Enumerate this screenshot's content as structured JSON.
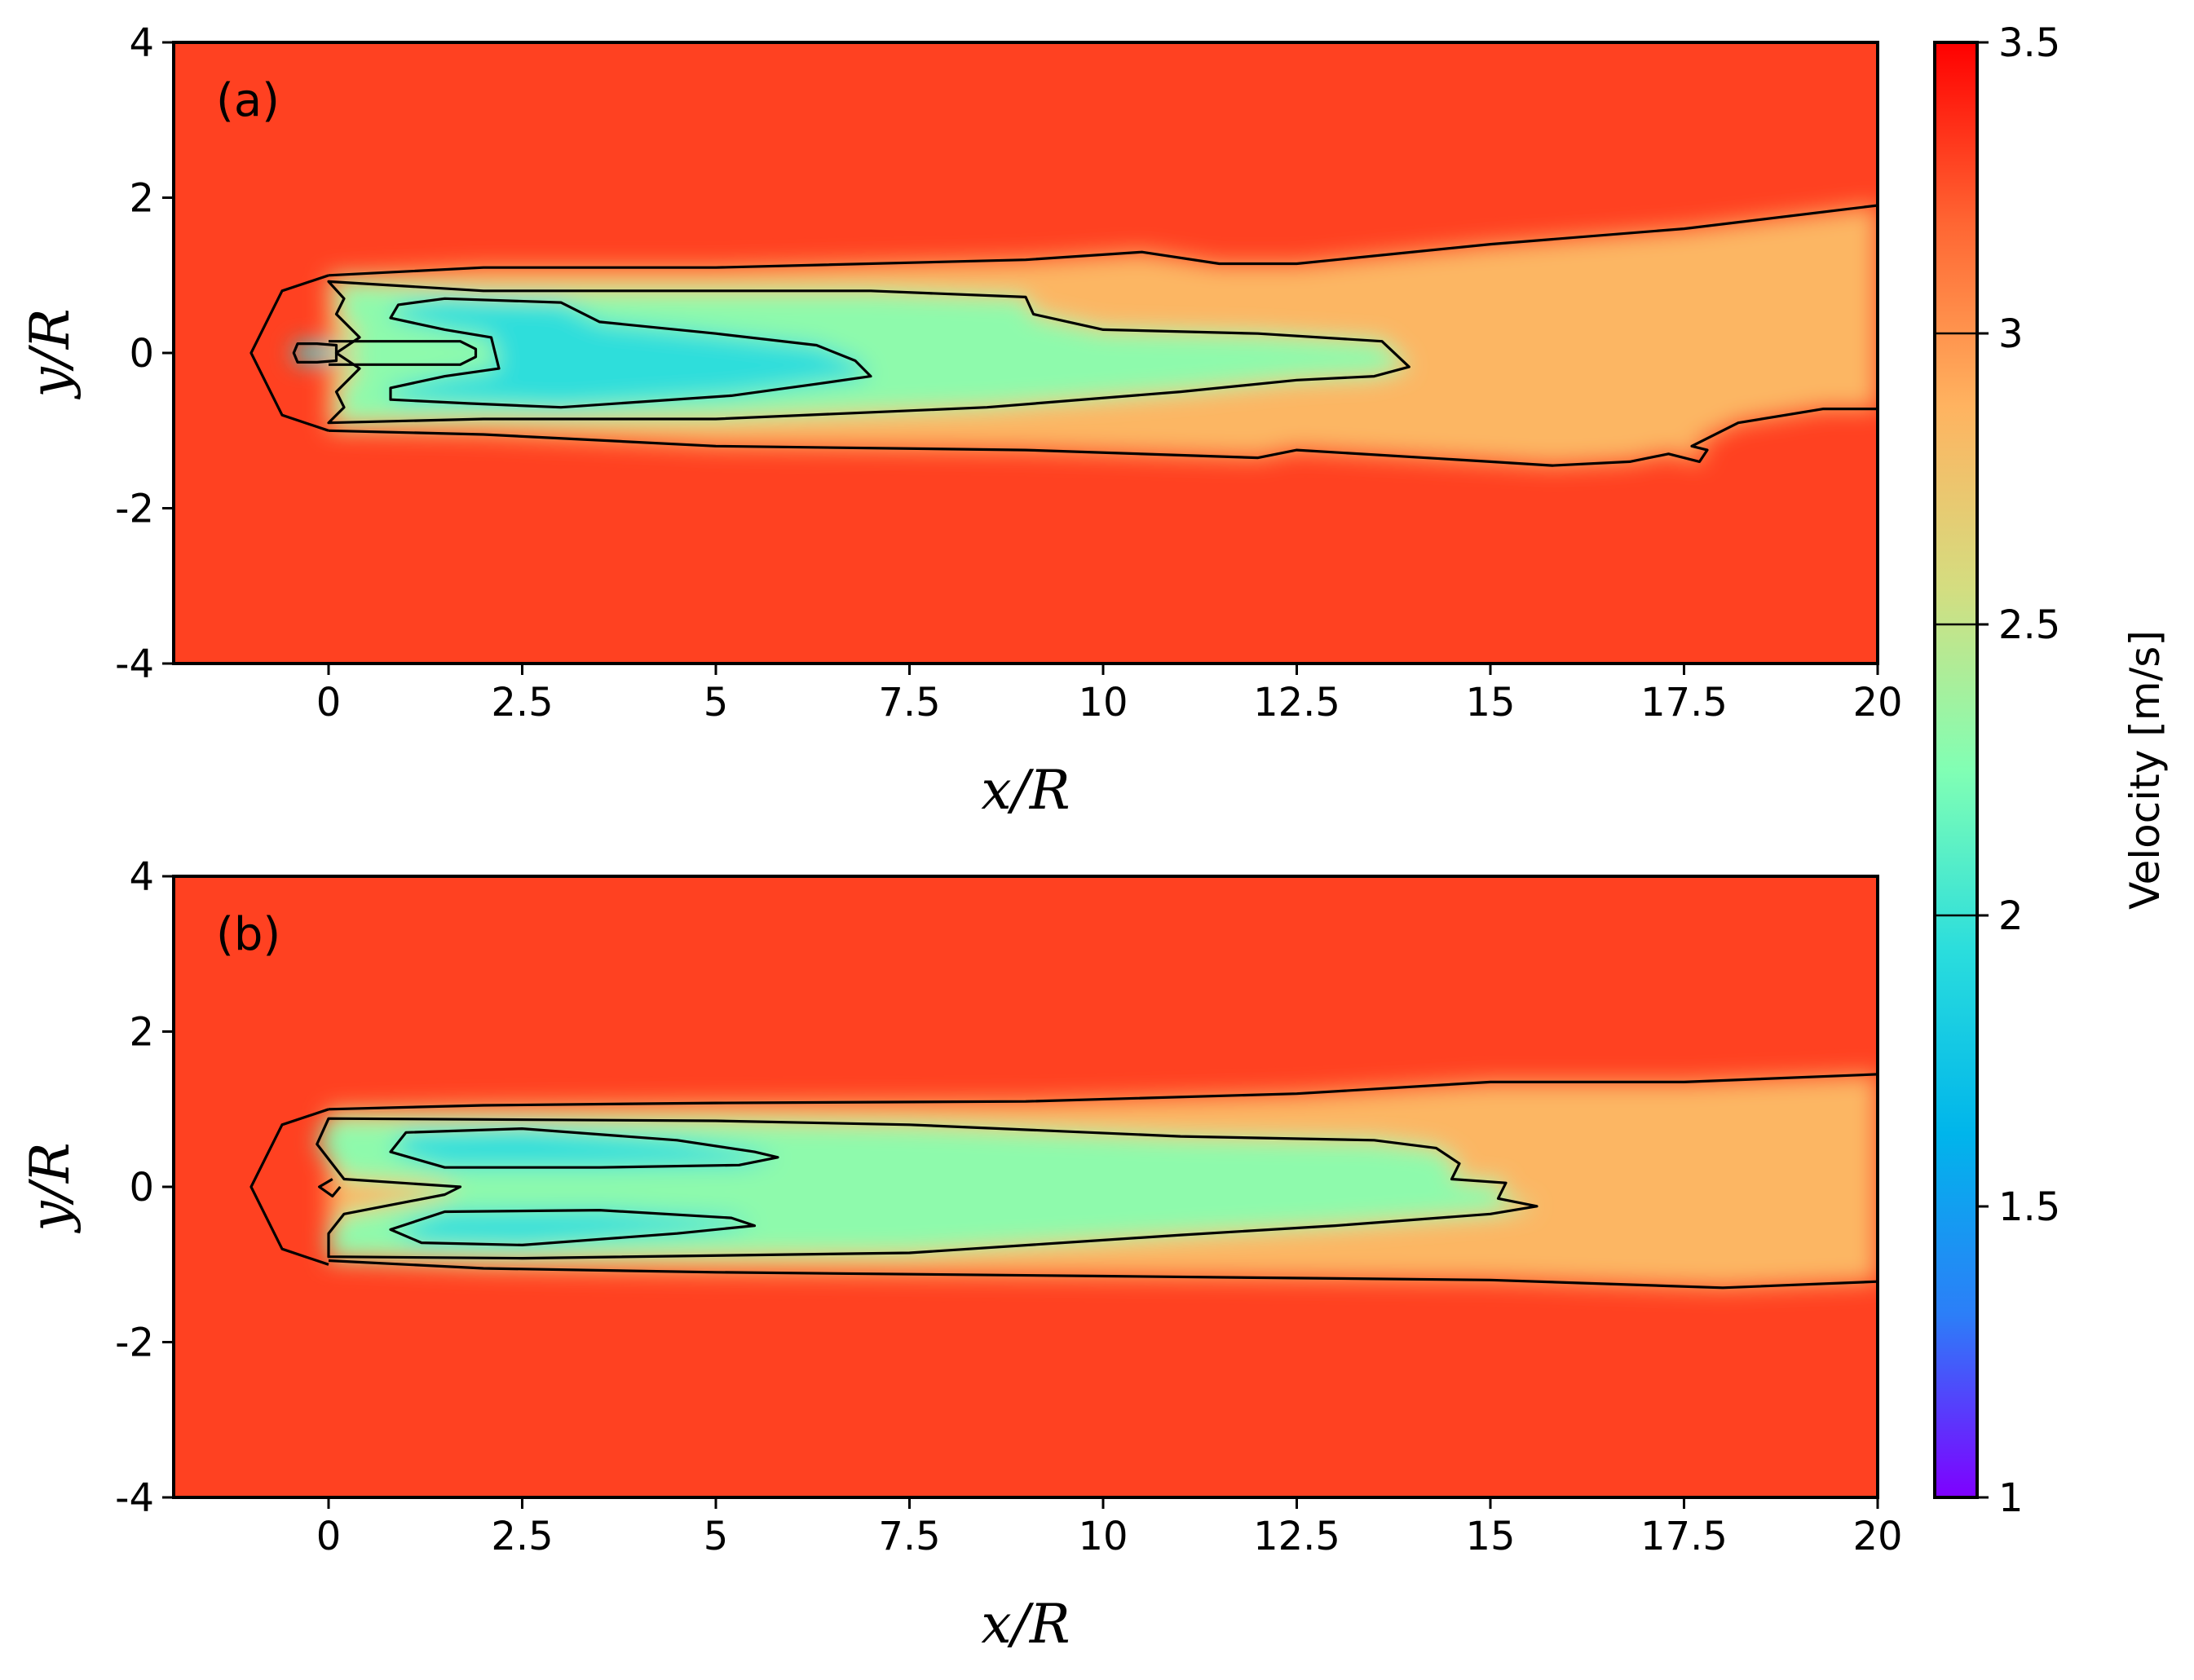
{
  "chart_data": {
    "type": "heatmap",
    "colorbar": {
      "label": "Velocity [m/s]",
      "range": [
        1,
        3.5
      ],
      "ticks": [
        1,
        1.5,
        2,
        2.5,
        3,
        3.5
      ],
      "tick_labels": [
        "1",
        "1.5",
        "2",
        "2.5",
        "3",
        "3.5"
      ],
      "contour_levels": [
        2,
        2.5,
        3
      ],
      "colormap": [
        "#7f00ff",
        "#2c7ef8",
        "#00b5eb",
        "#2adddd",
        "#81ffb4",
        "#d4dd80",
        "#ffb360",
        "#ff6633",
        "#ff0000"
      ]
    },
    "panels": [
      {
        "id": "a",
        "panel_label": "(a)",
        "xlabel": "x/R",
        "ylabel": "y/R",
        "xlim": [
          -2,
          20
        ],
        "ylim": [
          -4,
          4
        ],
        "x_ticks": [
          0,
          2.5,
          5,
          7.5,
          10,
          12.5,
          15,
          17.5,
          20
        ],
        "x_tick_labels": [
          "0",
          "2.5",
          "5",
          "7.5",
          "10",
          "12.5",
          "15",
          "17.5",
          "20"
        ],
        "y_ticks": [
          -4,
          -2,
          0,
          2,
          4
        ],
        "y_tick_labels": [
          "-4",
          "-2",
          "0",
          "2",
          "4"
        ],
        "contours": [
          {
            "level": 3,
            "points": [
              [
                0,
                -1
              ],
              [
                -0.6,
                -0.8
              ],
              [
                -1,
                0
              ],
              [
                -0.6,
                0.8
              ],
              [
                0,
                1
              ]
            ]
          },
          {
            "level": 3,
            "points": [
              [
                0,
                -1
              ],
              [
                2,
                -1.05
              ],
              [
                5,
                -1.2
              ],
              [
                9,
                -1.25
              ],
              [
                12,
                -1.35
              ],
              [
                12.5,
                -1.25
              ],
              [
                15,
                -1.4
              ],
              [
                15.8,
                -1.45
              ],
              [
                16.8,
                -1.4
              ],
              [
                17.3,
                -1.3
              ],
              [
                17.7,
                -1.4
              ],
              [
                17.8,
                -1.25
              ],
              [
                17.6,
                -1.2
              ],
              [
                18.2,
                -0.9
              ],
              [
                19.3,
                -0.72
              ],
              [
                20,
                -0.72
              ]
            ]
          },
          {
            "level": 3,
            "points": [
              [
                0,
                1
              ],
              [
                2,
                1.1
              ],
              [
                5,
                1.1
              ],
              [
                9,
                1.2
              ],
              [
                10.5,
                1.3
              ],
              [
                11.5,
                1.15
              ],
              [
                12.5,
                1.15
              ],
              [
                15,
                1.4
              ],
              [
                17.5,
                1.6
              ],
              [
                20,
                1.9
              ]
            ]
          },
          {
            "level": 2.5,
            "points": [
              [
                0,
                -0.9
              ],
              [
                2,
                -0.85
              ],
              [
                5,
                -0.85
              ],
              [
                8.5,
                -0.7
              ],
              [
                11,
                -0.5
              ],
              [
                12.5,
                -0.35
              ],
              [
                13.5,
                -0.3
              ],
              [
                13.95,
                -0.18
              ],
              [
                13.6,
                0.15
              ],
              [
                12,
                0.25
              ],
              [
                10,
                0.3
              ],
              [
                9.1,
                0.5
              ],
              [
                9,
                0.72
              ],
              [
                7,
                0.8
              ],
              [
                2,
                0.8
              ],
              [
                0,
                0.92
              ],
              [
                0.2,
                0.7
              ],
              [
                0.1,
                0.5
              ],
              [
                0.4,
                0.2
              ],
              [
                0.1,
                0
              ],
              [
                0.4,
                -0.2
              ],
              [
                0.1,
                -0.5
              ],
              [
                0.2,
                -0.7
              ],
              [
                0,
                -0.9
              ]
            ]
          },
          {
            "level": 2,
            "points": [
              [
                0.8,
                -0.6
              ],
              [
                1.8,
                -0.65
              ],
              [
                3,
                -0.7
              ],
              [
                5.2,
                -0.55
              ],
              [
                6.3,
                -0.4
              ],
              [
                7,
                -0.3
              ],
              [
                6.8,
                -0.1
              ],
              [
                6.3,
                0.1
              ],
              [
                5,
                0.25
              ],
              [
                3.5,
                0.4
              ],
              [
                3,
                0.65
              ],
              [
                1.5,
                0.7
              ],
              [
                0.9,
                0.62
              ],
              [
                0.8,
                0.45
              ],
              [
                1.5,
                0.3
              ],
              [
                2.1,
                0.2
              ],
              [
                2.2,
                -0.2
              ],
              [
                1.5,
                -0.3
              ],
              [
                0.8,
                -0.45
              ],
              [
                0.8,
                -0.6
              ]
            ]
          },
          {
            "level": 2,
            "points": [
              [
                -0.45,
                0
              ],
              [
                -0.4,
                0.12
              ],
              [
                -0.15,
                0.12
              ],
              [
                0.1,
                0.1
              ],
              [
                0.1,
                -0.1
              ],
              [
                -0.15,
                -0.12
              ],
              [
                -0.4,
                -0.12
              ],
              [
                -0.45,
                0
              ]
            ]
          },
          {
            "level": 1.5,
            "points": [
              [
                0,
                0.15
              ],
              [
                1.7,
                0.15
              ],
              [
                1.9,
                0.05
              ],
              [
                1.9,
                -0.05
              ],
              [
                1.7,
                -0.15
              ],
              [
                0,
                -0.15
              ]
            ]
          }
        ]
      },
      {
        "id": "b",
        "panel_label": "(b)",
        "xlabel": "x/R",
        "ylabel": "y/R",
        "xlim": [
          -2,
          20
        ],
        "ylim": [
          -4,
          4
        ],
        "x_ticks": [
          0,
          2.5,
          5,
          7.5,
          10,
          12.5,
          15,
          17.5,
          20
        ],
        "x_tick_labels": [
          "0",
          "2.5",
          "5",
          "7.5",
          "10",
          "12.5",
          "15",
          "17.5",
          "20"
        ],
        "y_ticks": [
          -4,
          -2,
          0,
          2,
          4
        ],
        "y_tick_labels": [
          "-4",
          "-2",
          "0",
          "2",
          "4"
        ],
        "contours": [
          {
            "level": 3,
            "points": [
              [
                0,
                -1
              ],
              [
                -0.6,
                -0.8
              ],
              [
                -1,
                0
              ],
              [
                -0.6,
                0.8
              ],
              [
                0,
                1
              ]
            ]
          },
          {
            "level": 3,
            "points": [
              [
                0,
                -0.95
              ],
              [
                2,
                -1.05
              ],
              [
                5,
                -1.1
              ],
              [
                10,
                -1.15
              ],
              [
                15,
                -1.2
              ],
              [
                18,
                -1.3
              ],
              [
                20,
                -1.22
              ]
            ]
          },
          {
            "level": 3,
            "points": [
              [
                0,
                1
              ],
              [
                2,
                1.05
              ],
              [
                5,
                1.08
              ],
              [
                9,
                1.1
              ],
              [
                12.5,
                1.2
              ],
              [
                15,
                1.35
              ],
              [
                17.5,
                1.35
              ],
              [
                20,
                1.45
              ]
            ]
          },
          {
            "level": 2.5,
            "points": [
              [
                0,
                -0.9
              ],
              [
                2.5,
                -0.92
              ],
              [
                7.5,
                -0.85
              ],
              [
                11,
                -0.62
              ],
              [
                13,
                -0.5
              ],
              [
                15,
                -0.35
              ],
              [
                15.6,
                -0.25
              ],
              [
                15.1,
                -0.15
              ],
              [
                15.2,
                0.05
              ],
              [
                14.5,
                0.1
              ],
              [
                14.6,
                0.3
              ],
              [
                14.3,
                0.5
              ],
              [
                13.5,
                0.6
              ],
              [
                11,
                0.65
              ],
              [
                7.5,
                0.8
              ],
              [
                5,
                0.85
              ],
              [
                0,
                0.88
              ],
              [
                -0.15,
                0.55
              ],
              [
                0.2,
                0.1
              ],
              [
                1.7,
                0
              ],
              [
                1.5,
                -0.1
              ],
              [
                0.2,
                -0.35
              ],
              [
                0,
                -0.6
              ],
              [
                0,
                -0.9
              ]
            ]
          },
          {
            "level": 2,
            "points": [
              [
                0.8,
                0.45
              ],
              [
                1,
                0.7
              ],
              [
                2.5,
                0.75
              ],
              [
                4.5,
                0.6
              ],
              [
                5.5,
                0.45
              ],
              [
                5.8,
                0.38
              ],
              [
                5.3,
                0.28
              ],
              [
                3.5,
                0.25
              ],
              [
                1.5,
                0.25
              ],
              [
                0.8,
                0.45
              ]
            ]
          },
          {
            "level": 2,
            "points": [
              [
                0.8,
                -0.55
              ],
              [
                1.2,
                -0.72
              ],
              [
                2.5,
                -0.75
              ],
              [
                4.5,
                -0.6
              ],
              [
                5.5,
                -0.5
              ],
              [
                5.2,
                -0.4
              ],
              [
                3.5,
                -0.3
              ],
              [
                1.5,
                -0.32
              ],
              [
                0.8,
                -0.55
              ]
            ]
          },
          {
            "level": 3,
            "points": [
              [
                0.05,
                0.1
              ],
              [
                -0.12,
                0
              ],
              [
                0.05,
                -0.12
              ],
              [
                0.15,
                0
              ]
            ]
          }
        ]
      }
    ]
  }
}
